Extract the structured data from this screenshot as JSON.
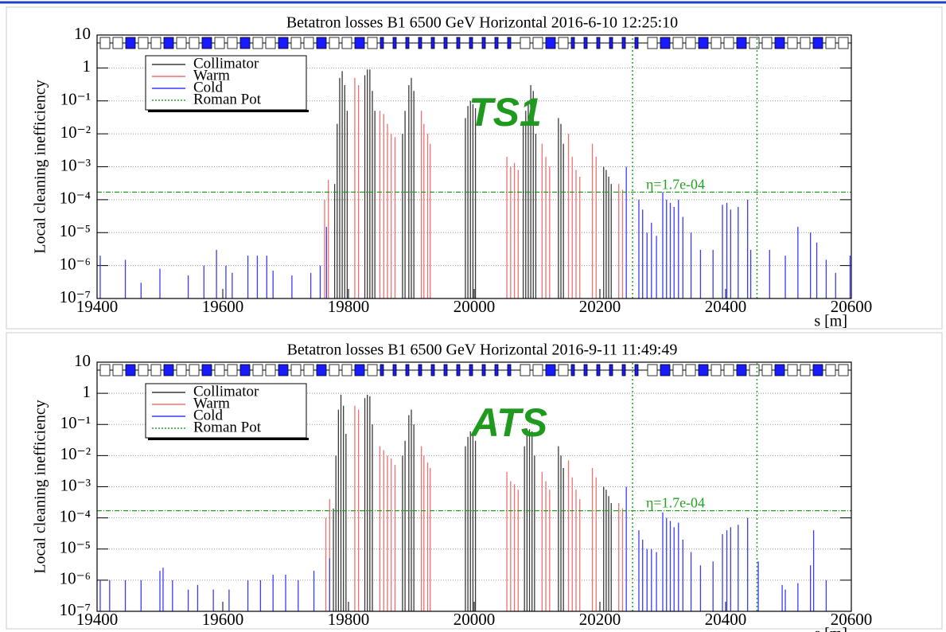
{
  "chart_data": [
    {
      "type": "spike",
      "title": "Betatron losses B1 6500 GeV Horizontal 2016-6-10 12:25:10",
      "x_label": "s [m]",
      "y_label": "Local cleaning inefficiency",
      "annotation": "TS1",
      "log_y": true,
      "xlim": [
        19400,
        20600
      ],
      "xticks": [
        19400,
        19600,
        19800,
        20000,
        20200,
        20400,
        20600
      ],
      "ylim": [
        1e-07,
        10
      ],
      "yticks": [
        {
          "value": 1e-07,
          "label": "10⁻⁷"
        },
        {
          "value": 1e-06,
          "label": "10⁻⁶"
        },
        {
          "value": 1e-05,
          "label": "10⁻⁵"
        },
        {
          "value": 0.0001,
          "label": "10⁻⁴"
        },
        {
          "value": 0.001,
          "label": "10⁻³"
        },
        {
          "value": 0.01,
          "label": "10⁻²"
        },
        {
          "value": 0.1,
          "label": "10⁻¹"
        },
        1,
        10
      ],
      "grid": true,
      "threshold": 0.00017,
      "threshold_label": "η=1.7e-04",
      "threshold_color": "#22a022",
      "series": [
        {
          "name": "Collimator",
          "color": "#3a3a3a",
          "x": [
            19778,
            19782,
            19786,
            19790,
            19794,
            19798,
            19826,
            19830,
            19834,
            19838,
            19842,
            19886,
            19890,
            19896,
            19900,
            19904,
            19986,
            19990,
            19994,
            19998,
            20002,
            20078,
            20082,
            20086,
            20090,
            20094,
            20098,
            20134,
            20138,
            20142,
            20206,
            20210,
            20214,
            20218
          ],
          "values": [
            0.0003,
            0.02,
            0.5,
            0.8,
            0.3,
            0.05,
            0.6,
            0.9,
            0.9,
            0.2,
            0.05,
            0.01,
            0.05,
            0.3,
            0.5,
            0.2,
            0.03,
            0.07,
            0.1,
            0.08,
            0.06,
            0.02,
            0.05,
            0.1,
            0.3,
            0.2,
            0.01,
            0.03,
            0.02,
            0.005,
            0.001,
            0.0008,
            0.0005,
            0.0003
          ]
        },
        {
          "name": "Warm",
          "color": "#f07070",
          "x": [
            19762,
            19768,
            19810,
            19816,
            19850,
            19856,
            19862,
            19868,
            19874,
            19916,
            19920,
            19926,
            19930,
            20052,
            20058,
            20064,
            20070,
            20108,
            20114,
            20120,
            20150,
            20156,
            20162,
            20168,
            20188,
            20194,
            20230,
            20236
          ],
          "values": [
            0.0001,
            0.0004,
            0.5,
            0.3,
            0.05,
            0.04,
            0.02,
            0.01,
            0.008,
            0.05,
            0.02,
            0.01,
            0.005,
            0.002,
            0.001,
            0.0013,
            0.0008,
            0.005,
            0.002,
            0.001,
            0.01,
            0.002,
            0.0008,
            0.0005,
            0.005,
            0.002,
            0.0003,
            0.0002
          ]
        },
        {
          "name": "Cold",
          "color": "#3a3aff",
          "x": [
            19405,
            19445,
            19470,
            19500,
            19545,
            19570,
            19590,
            19605,
            19615,
            19640,
            19655,
            19670,
            19680,
            19710,
            19740,
            19755,
            19765,
            20242,
            20262,
            20268,
            20275,
            20282,
            20290,
            20300,
            20306,
            20312,
            20318,
            20325,
            20332,
            20345,
            20360,
            20380,
            20395,
            20402,
            20408,
            20420,
            20435,
            20440,
            20470,
            20495,
            20515,
            20535,
            20545,
            20560,
            20575,
            20598
          ],
          "values": [
            2e-06,
            1.5e-06,
            3e-07,
            8e-07,
            5e-07,
            1e-06,
            3e-06,
            1e-06,
            6e-07,
            2e-06,
            2e-06,
            2e-06,
            7e-07,
            5e-07,
            6e-07,
            1e-06,
            1.5e-05,
            0.001,
            0.0001,
            5e-05,
            1e-05,
            2e-05,
            8e-06,
            0.00017,
            0.0001,
            8e-05,
            6e-05,
            0.0001,
            3e-05,
            1e-05,
            3e-06,
            3e-06,
            7e-05,
            8e-05,
            5e-05,
            6e-05,
            0.0001,
            3e-06,
            3e-06,
            2e-06,
            1.5e-05,
            1e-05,
            5e-06,
            1.5e-06,
            6e-07,
            2e-06
          ]
        },
        {
          "name": "Roman Pot",
          "color": "#22a022",
          "dashed": true,
          "x": [
            20252,
            20450
          ],
          "values": [
            10,
            10
          ]
        }
      ]
    },
    {
      "type": "spike",
      "title": "Betatron losses B1 6500 GeV Horizontal 2016-9-11 11:49:49",
      "x_label": "s [m]",
      "y_label": "Local cleaning inefficiency",
      "annotation": "ATS",
      "log_y": true,
      "xlim": [
        19400,
        20600
      ],
      "xticks": [
        19400,
        19600,
        19800,
        20000,
        20200,
        20400,
        20600
      ],
      "ylim": [
        1e-07,
        10
      ],
      "yticks": [
        {
          "value": 1e-07,
          "label": "10⁻⁷"
        },
        {
          "value": 1e-06,
          "label": "10⁻⁶"
        },
        {
          "value": 1e-05,
          "label": "10⁻⁵"
        },
        {
          "value": 0.0001,
          "label": "10⁻⁴"
        },
        {
          "value": 0.001,
          "label": "10⁻³"
        },
        {
          "value": 0.01,
          "label": "10⁻²"
        },
        {
          "value": 0.1,
          "label": "10⁻¹"
        },
        1,
        10
      ],
      "grid": true,
      "threshold": 0.00017,
      "threshold_label": "η=1.7e-04",
      "threshold_color": "#22a022",
      "series": [
        {
          "name": "Collimator",
          "color": "#3a3a3a",
          "x": [
            19776,
            19780,
            19784,
            19788,
            19792,
            19796,
            19826,
            19830,
            19834,
            19838,
            19886,
            19890,
            19896,
            19900,
            19904,
            19986,
            19990,
            19994,
            19998,
            20002,
            20080,
            20084,
            20088,
            20092,
            20096,
            20134,
            20138,
            20142,
            20206,
            20210,
            20214,
            20218
          ],
          "values": [
            0.0002,
            0.01,
            0.3,
            0.9,
            0.4,
            0.05,
            0.7,
            0.9,
            0.8,
            0.1,
            0.01,
            0.03,
            0.2,
            0.3,
            0.1,
            0.02,
            0.04,
            0.06,
            0.05,
            0.03,
            0.02,
            0.05,
            0.07,
            0.06,
            0.01,
            0.02,
            0.01,
            0.004,
            0.001,
            0.0008,
            0.0005,
            0.0003
          ]
        },
        {
          "name": "Warm",
          "color": "#f07070",
          "x": [
            19764,
            19770,
            19810,
            19816,
            19850,
            19856,
            19862,
            19868,
            19874,
            19916,
            19920,
            19926,
            19930,
            20052,
            20058,
            20064,
            20070,
            20108,
            20114,
            20120,
            20150,
            20156,
            20162,
            20168,
            20188,
            20194,
            20230,
            20236
          ],
          "values": [
            0.0001,
            0.0004,
            0.4,
            0.3,
            0.02,
            0.015,
            0.01,
            0.008,
            0.005,
            0.02,
            0.01,
            0.006,
            0.004,
            0.003,
            0.0015,
            0.0012,
            0.0008,
            0.003,
            0.0015,
            0.0008,
            0.007,
            0.002,
            0.0008,
            0.0004,
            0.004,
            0.002,
            0.0003,
            0.0002
          ]
        },
        {
          "name": "Cold",
          "color": "#3a3aff",
          "x": [
            19405,
            19420,
            19445,
            19470,
            19500,
            19505,
            19520,
            19545,
            19560,
            19585,
            19610,
            19640,
            19660,
            19680,
            19700,
            19720,
            19745,
            19770,
            20242,
            20262,
            20268,
            20275,
            20282,
            20290,
            20300,
            20306,
            20312,
            20318,
            20325,
            20332,
            20345,
            20360,
            20380,
            20395,
            20402,
            20408,
            20420,
            20435,
            20452,
            20490,
            20495,
            20515,
            20535,
            20540,
            20560
          ],
          "values": [
            1e-06,
            1e-06,
            1e-06,
            1e-06,
            2e-06,
            2.5e-06,
            1e-06,
            5e-07,
            7e-07,
            5e-07,
            5e-07,
            1e-06,
            1e-06,
            1.5e-06,
            1.5e-06,
            1e-06,
            2e-06,
            5e-06,
            0.001,
            4e-05,
            2e-05,
            1e-05,
            1e-05,
            8e-06,
            0.00015,
            0.0001,
            8e-05,
            5e-05,
            7e-05,
            2e-05,
            8e-06,
            3e-06,
            4e-06,
            3e-05,
            4e-05,
            5e-05,
            6e-05,
            0.0001,
            4e-06,
            7e-07,
            5e-07,
            8e-07,
            3e-06,
            4e-05,
            1e-06
          ]
        },
        {
          "name": "Roman Pot",
          "color": "#22a022",
          "dashed": true,
          "x": [
            20252,
            20450
          ],
          "values": [
            10,
            10
          ]
        }
      ]
    }
  ]
}
